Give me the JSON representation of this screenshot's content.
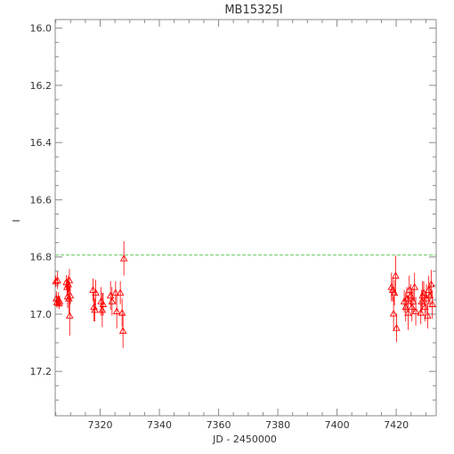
{
  "chart_data": {
    "type": "scatter",
    "title": "MB15325I",
    "xlabel": "JD - 2450000",
    "ylabel": "I",
    "xlim": [
      7304.8,
      7433.5
    ],
    "ylim": [
      17.355,
      15.97
    ],
    "y_inverted": true,
    "x_ticks": [
      7320,
      7340,
      7360,
      7380,
      7400,
      7420
    ],
    "x_tick_labels": [
      "7320",
      "7340",
      "7360",
      "7380",
      "7400",
      "7420"
    ],
    "y_ticks": [
      16.0,
      16.2,
      16.4,
      16.6,
      16.8,
      17.0,
      17.2
    ],
    "y_tick_labels": [
      "16.0",
      "16.2",
      "16.4",
      "16.6",
      "16.8",
      "17.0",
      "17.2"
    ],
    "grid": false,
    "reference_line": {
      "y": 16.793,
      "color": "#66cc66",
      "style": "dashed"
    },
    "marker": "open-triangle",
    "point_color": "#ff0000",
    "series": [
      {
        "x": [
          7305.0,
          7305.2,
          7305.4,
          7305.6,
          7305.9,
          7306.1,
          7306.3,
          7308.6,
          7308.8,
          7309.0,
          7309.2,
          7309.4,
          7309.6,
          7309.7,
          7309.9,
          7317.6,
          7317.9,
          7318.2,
          7318.5,
          7320.3,
          7320.7,
          7321.0,
          7323.5,
          7324.0,
          7325.2,
          7325.6,
          7326.8,
          7327.4,
          7327.7,
          7328.0,
          7418.4,
          7418.8,
          7419.1,
          7419.4,
          7419.8,
          7420.1,
          7422.7,
          7423.2,
          7423.6,
          7424.0,
          7424.4,
          7424.9,
          7425.3,
          7425.7,
          7426.2,
          7426.6,
          7428.3,
          7428.6,
          7428.9,
          7429.3,
          7429.7,
          7430.2,
          7430.6,
          7431.0,
          7431.4,
          7431.8,
          7432.2
        ]
      },
      {
        "y": [
          16.885,
          16.945,
          16.958,
          16.882,
          16.948,
          16.962,
          16.955,
          16.888,
          16.905,
          16.938,
          16.895,
          16.945,
          16.882,
          17.005,
          16.935,
          16.915,
          16.975,
          16.985,
          16.925,
          16.955,
          16.985,
          16.965,
          16.935,
          16.955,
          16.925,
          16.99,
          16.925,
          16.995,
          17.058,
          16.805,
          16.905,
          16.915,
          16.998,
          16.925,
          16.865,
          17.048,
          16.955,
          16.975,
          16.945,
          16.995,
          16.915,
          16.935,
          16.975,
          16.955,
          16.905,
          16.99,
          16.995,
          16.955,
          16.935,
          16.925,
          16.975,
          16.945,
          17.005,
          16.915,
          16.935,
          16.895,
          16.965
        ],
        "err": [
          0.02,
          0.025,
          0.02,
          0.03,
          0.025,
          0.02,
          0.02,
          0.025,
          0.03,
          0.04,
          0.03,
          0.05,
          0.04,
          0.07,
          0.03,
          0.04,
          0.05,
          0.04,
          0.045,
          0.05,
          0.06,
          0.04,
          0.05,
          0.05,
          0.04,
          0.06,
          0.04,
          0.05,
          0.06,
          0.06,
          0.05,
          0.04,
          0.06,
          0.045,
          0.07,
          0.05,
          0.04,
          0.05,
          0.04,
          0.06,
          0.05,
          0.04,
          0.05,
          0.045,
          0.05,
          0.05,
          0.04,
          0.04,
          0.05,
          0.04,
          0.05,
          0.05,
          0.045,
          0.05,
          0.04,
          0.05,
          0.05
        ]
      }
    ]
  }
}
